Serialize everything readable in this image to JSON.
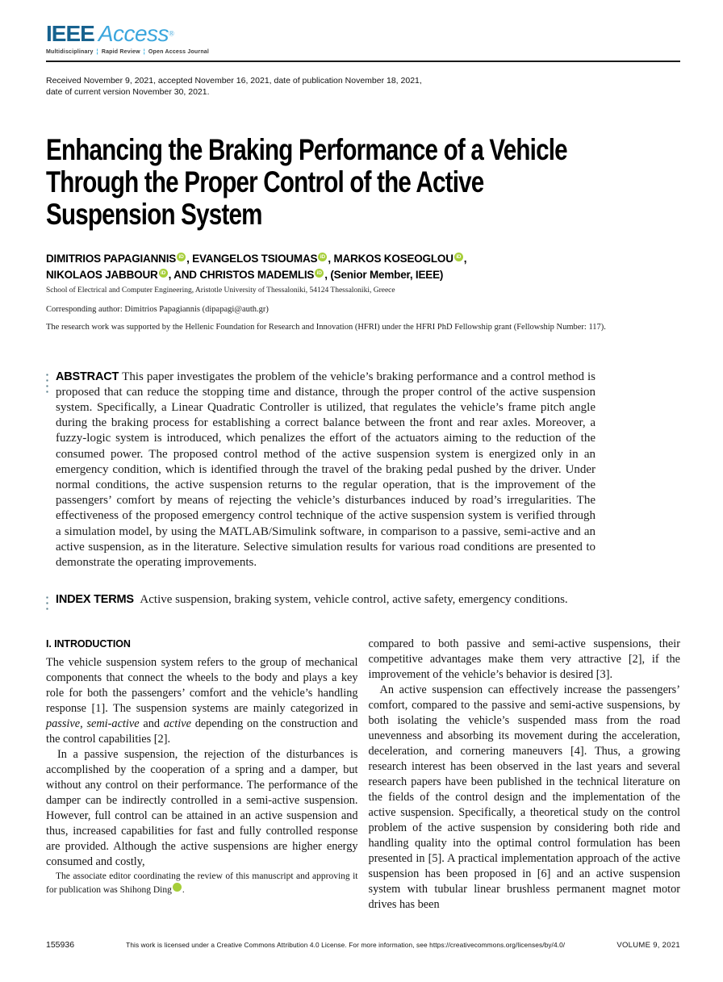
{
  "colors": {
    "ieee_blue": "#17628f",
    "access_blue": "#3ba6dd",
    "tagline_cyan": "#29abe2",
    "orcid_green": "#a6ce39",
    "dots_teal": "#5b7f8c"
  },
  "header": {
    "logo_ieee": "IEEE",
    "logo_access": "Access",
    "logo_reg": "®",
    "tagline_items": [
      "Multidisciplinary",
      "Rapid Review",
      "Open Access Journal"
    ],
    "tagline_sep": "¦"
  },
  "meta": {
    "dates_line1": "Received November 9, 2021, accepted November 16, 2021, date of publication November 18, 2021,",
    "dates_line2": "date of current version November 30, 2021."
  },
  "title_lines": [
    "Enhancing the Braking Performance of a Vehicle",
    "Through the Proper Control of the Active",
    "Suspension System"
  ],
  "authors": {
    "list": [
      {
        "name": "DIMITRIOS PAPAGIANNIS",
        "after": ", "
      },
      {
        "name": "EVANGELOS TSIOUMAS",
        "after": ", "
      },
      {
        "name": "MARKOS KOSEOGLOU",
        "after": ","
      },
      {
        "name": "NIKOLAOS JABBOUR",
        "after": ", AND "
      },
      {
        "name": "CHRISTOS MADEMLIS",
        "after": ", "
      }
    ],
    "member_note": "(Senior Member, IEEE)",
    "affiliation": "School of Electrical and Computer Engineering, Aristotle University of Thessaloniki, 54124 Thessaloniki, Greece",
    "corresponding": "Corresponding author: Dimitrios Papagiannis (dipapagi@auth.gr)",
    "funding": "The research work was supported by the Hellenic Foundation for Research and Innovation (HFRI) under the HFRI PhD Fellowship grant (Fellowship Number: 117)."
  },
  "abstract": {
    "label": "ABSTRACT",
    "text": "This paper investigates the problem of the vehicle’s braking performance and a control method is proposed that can reduce the stopping time and distance, through the proper control of the active suspension system. Specifically, a Linear Quadratic Controller is utilized, that regulates the vehicle’s frame pitch angle during the braking process for establishing a correct balance between the front and rear axles. Moreover, a fuzzy-logic system is introduced, which penalizes the effort of the actuators aiming to the reduction of the consumed power. The proposed control method of the active suspension system is energized only in an emergency condition, which is identified through the travel of the braking pedal pushed by the driver. Under normal conditions, the active suspension returns to the regular operation, that is the improvement of the passengers’ comfort by means of rejecting the vehicle’s disturbances induced by road’s irregularities. The effectiveness of the proposed emergency control technique of the active suspension system is verified through a simulation model, by using the MATLAB/Simulink software, in comparison to a passive, semi-active and an active suspension, as in the literature. Selective simulation results for various road conditions are presented to demonstrate the operating improvements."
  },
  "index_terms": {
    "label": "INDEX TERMS",
    "text": "Active suspension, braking system, vehicle control, active safety, emergency conditions."
  },
  "introduction": {
    "heading": "I. INTRODUCTION",
    "p1": {
      "a": "The vehicle suspension system refers to the group of mechanical components that connect the wheels to the body and plays a key role for both the passengers’ comfort and the vehicle’s handling response [1]. The suspension systems are mainly categorized in ",
      "i1": "passive",
      "b": ", ",
      "i2": "semi-active",
      "c": " and ",
      "i3": "active",
      "d": " depending on the construction and the control capabilities [2]."
    },
    "p2": "In a passive suspension, the rejection of the disturbances is accomplished by the cooperation of a spring and a damper, but without any control on their performance. The performance of the damper can be indirectly controlled in a semi-active suspension. However, full control can be attained in an active suspension and thus, increased capabilities for fast and fully controlled response are provided. Although the active suspensions are higher energy consumed and costly,",
    "p3": "compared to both passive and semi-active suspensions, their competitive advantages make them very attractive [2], if the improvement of the vehicle’s behavior is desired [3].",
    "p4": "An active suspension can effectively increase the passengers’ comfort, compared to the passive and semi-active suspensions, by both isolating the vehicle’s suspended mass from the road unevenness and absorbing its movement during the acceleration, deceleration, and cornering maneuvers [4]. Thus, a growing research interest has been observed in the last years and several research papers have been published in the technical literature on the fields of the control design and the implementation of the active suspension. Specifically, a theoretical study on the control problem of the active suspension by considering both ride and handling quality into the optimal control formulation has been presented in [5]. A practical implementation approach of the active suspension has been proposed in [6] and an active suspension system with tubular linear brushless permanent magnet motor drives has been"
  },
  "footnote": {
    "text_before": "The associate editor coordinating the review of this manuscript and approving it for publication was Shihong Ding",
    "text_after": "."
  },
  "footer": {
    "page_number": "155936",
    "license": "This work is licensed under a Creative Commons Attribution 4.0 License. For more information, see https://creativecommons.org/licenses/by/4.0/",
    "volume": "VOLUME 9, 2021"
  },
  "icons": {
    "orcid": "iD"
  }
}
